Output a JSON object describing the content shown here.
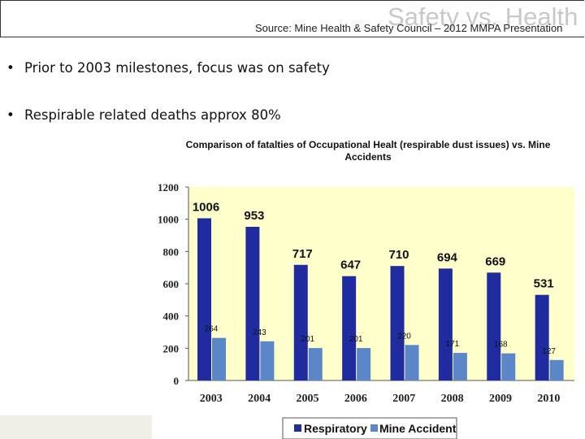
{
  "slide": {
    "title": "Safety vs. Health",
    "source": "Source: Mine Health & Safety Council – 2012 MMPA Presentation",
    "bullets": [
      "Prior to 2003 milestones, focus was on safety",
      "Respirable related deaths approx 80%"
    ]
  },
  "colors": {
    "respiratory": "#1f2b9e",
    "mine_accident": "#5b87c9",
    "plot_background": "#ffffcc"
  },
  "chart_data": {
    "type": "bar",
    "title_lines": [
      "Comparison of fatalties  of Occupational Healt (respirable dust issues) vs. Mine",
      "Accidents"
    ],
    "categories": [
      "2003",
      "2004",
      "2005",
      "2006",
      "2007",
      "2008",
      "2009",
      "2010"
    ],
    "series": [
      {
        "name": "Respiratory",
        "values": [
          1006,
          953,
          717,
          647,
          710,
          694,
          669,
          531
        ]
      },
      {
        "name": "Mine Accident",
        "values": [
          264,
          243,
          201,
          201,
          220,
          171,
          168,
          127
        ]
      }
    ],
    "y_ticks": [
      0,
      200,
      400,
      600,
      800,
      1000,
      1200
    ],
    "ylim": [
      0,
      1200
    ],
    "legend_position": "bottom",
    "grid": false
  }
}
